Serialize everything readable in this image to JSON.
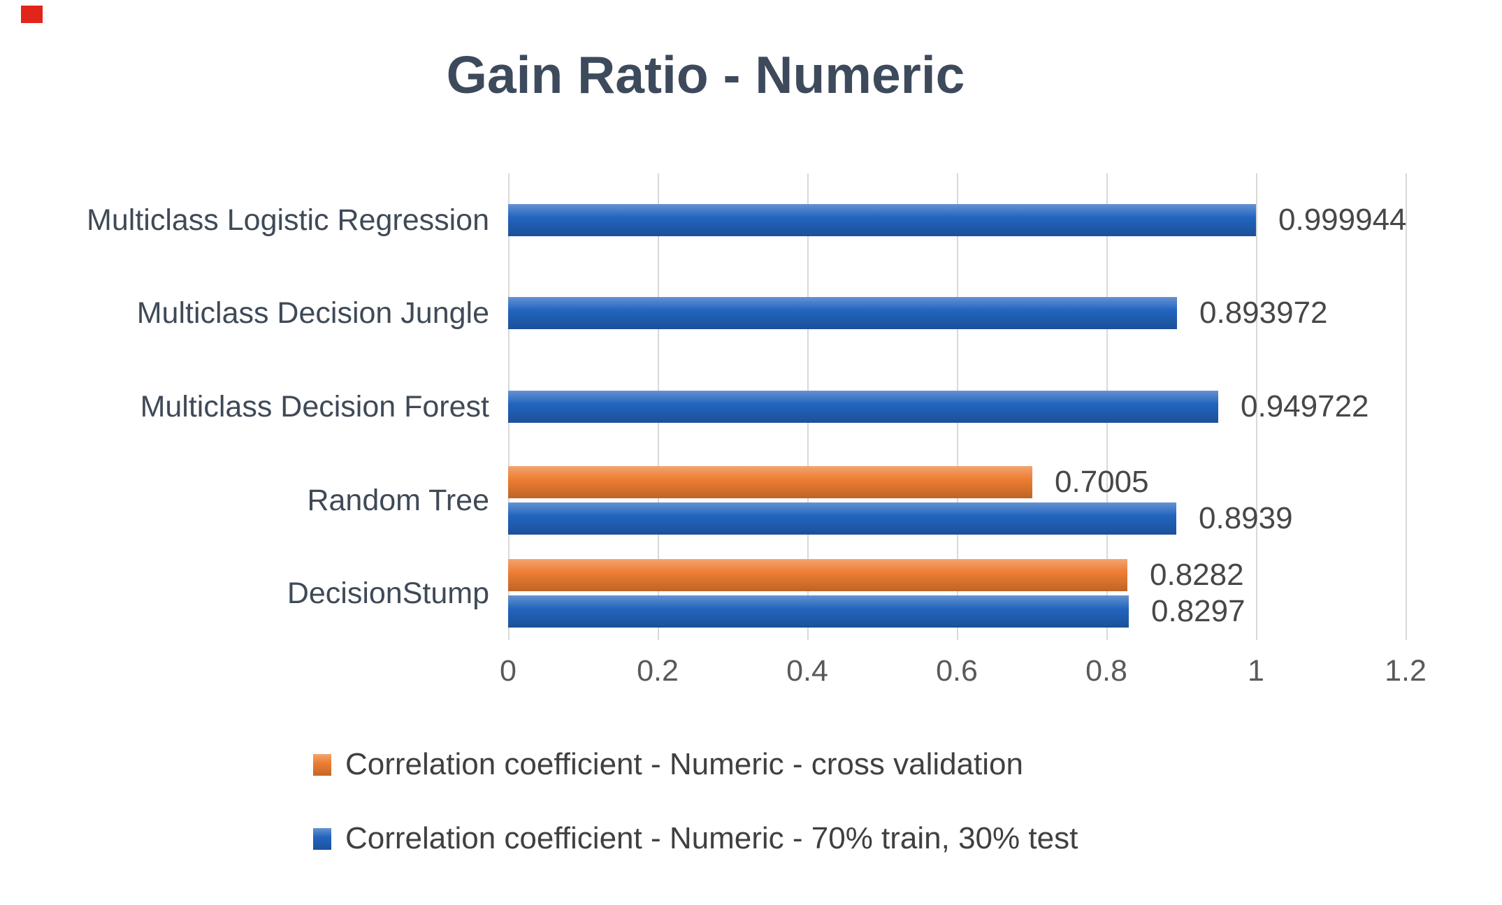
{
  "corner_marker": {
    "color": "#E2251B"
  },
  "chart_data": {
    "type": "bar",
    "orientation": "horizontal",
    "title": "Gain Ratio - Numeric",
    "categories": [
      "Multiclass Logistic Regression",
      "Multiclass Decision Jungle",
      "Multiclass Decision Forest",
      "Random Tree",
      "DecisionStump"
    ],
    "series": [
      {
        "name": "Correlation coefficient - Numeric - cross validation",
        "color": "#ED7D31",
        "values": [
          null,
          null,
          null,
          0.7005,
          0.8282
        ],
        "labels": [
          "",
          "",
          "",
          "0.7005",
          "0.8282"
        ]
      },
      {
        "name": "Correlation coefficient - Numeric - 70% train, 30% test",
        "color": "#2264BE",
        "values": [
          0.999944,
          0.893972,
          0.949722,
          0.8939,
          0.8297
        ],
        "labels": [
          "0.999944",
          "0.893972",
          "0.949722",
          "0.8939",
          "0.8297"
        ]
      }
    ],
    "xlim": [
      0,
      1.2
    ],
    "xticks": [
      "0",
      "0.2",
      "0.4",
      "0.6",
      "0.8",
      "1",
      "1.2"
    ],
    "grid": true,
    "legend_position": "bottom"
  }
}
